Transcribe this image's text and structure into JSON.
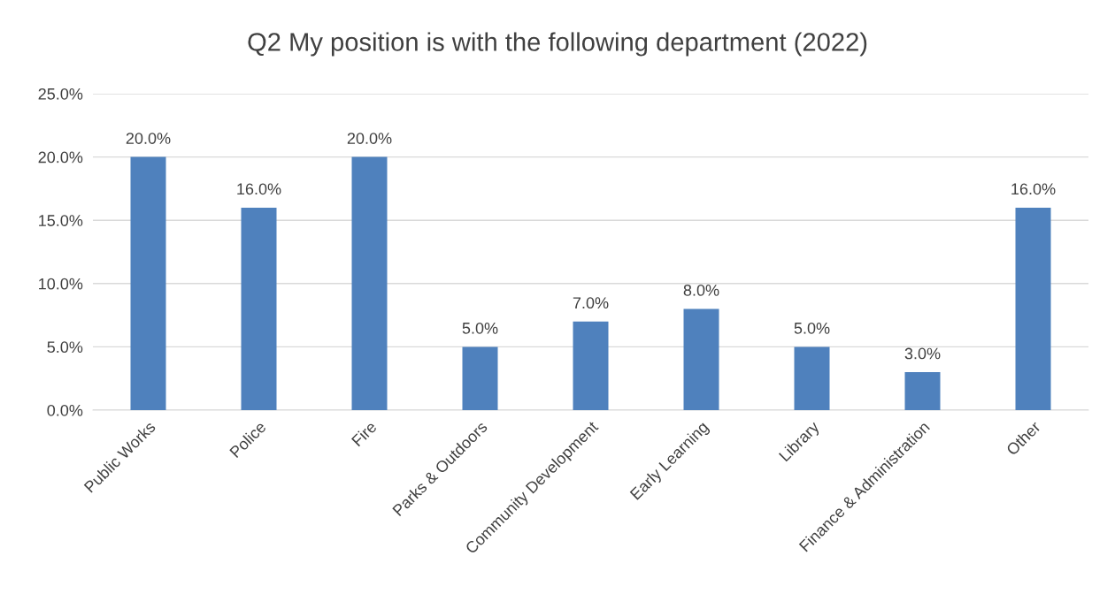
{
  "chart_data": {
    "type": "bar",
    "title": "Q2 My position is with the following department (2022)",
    "categories": [
      "Public Works",
      "Police",
      "Fire",
      "Parks & Outdoors",
      "Community Development",
      "Early Learning",
      "Library",
      "Finance & Administration",
      "Other"
    ],
    "values": [
      20,
      16,
      20,
      5,
      7,
      8,
      5,
      3,
      16
    ],
    "value_labels": [
      "20.0%",
      "16.0%",
      "20.0%",
      "5.0%",
      "7.0%",
      "8.0%",
      "5.0%",
      "3.0%",
      "16.0%"
    ],
    "color": "#4f81bd",
    "ylim": [
      0,
      25
    ],
    "yticks": [
      {
        "value": 0,
        "label": "0.0%"
      },
      {
        "value": 5,
        "label": "5.0%"
      },
      {
        "value": 10,
        "label": "10.0%"
      },
      {
        "value": 15,
        "label": "15.0%"
      },
      {
        "value": 20,
        "label": "20.0%"
      },
      {
        "value": 25,
        "label": "25.0%"
      }
    ],
    "grid": "y"
  }
}
